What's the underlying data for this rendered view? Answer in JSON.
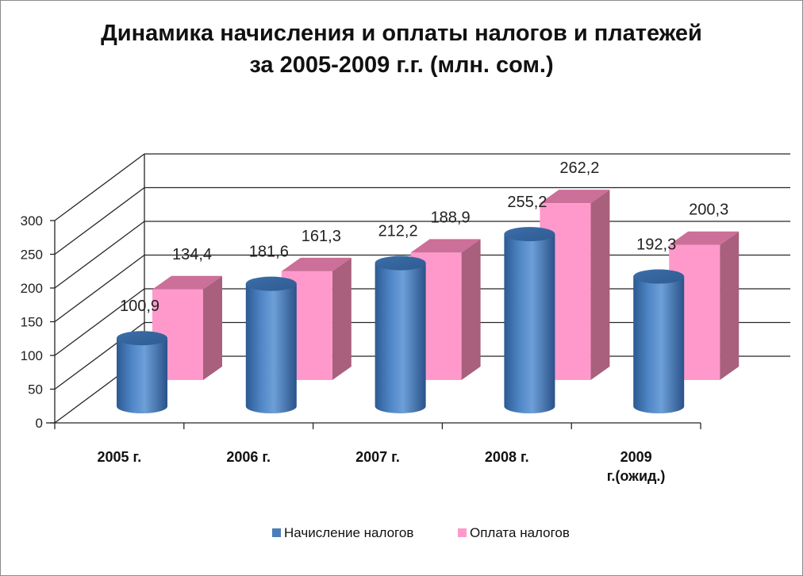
{
  "chart_data": {
    "type": "bar",
    "title_line1": "Динамика начисления  и оплаты налогов и платежей",
    "title_line2": "за 2005-2009 г.г. (млн. сом.)",
    "categories": [
      [
        "2005 г."
      ],
      [
        "2006 г."
      ],
      [
        "2007 г."
      ],
      [
        "2008 г."
      ],
      [
        "2009",
        "г.(ожид.)"
      ]
    ],
    "series": [
      {
        "name": "Начисление налогов",
        "values": [
          100.9,
          181.6,
          212.2,
          255.2,
          192.3
        ],
        "labels": [
          "100,9",
          "181,6",
          "212,2",
          "255,2",
          "192,3"
        ],
        "color": "#4a7ebb"
      },
      {
        "name": "Оплата налогов",
        "values": [
          134.4,
          161.3,
          188.9,
          262.2,
          200.3
        ],
        "labels": [
          "134,4",
          "161,3",
          "188,9",
          "262,2",
          "200,3"
        ],
        "color": "#ff99cc"
      }
    ],
    "y_ticks": [
      "0",
      "50",
      "100",
      "150",
      "200",
      "250",
      "300"
    ],
    "ylim": [
      0,
      300
    ],
    "grid": true,
    "legend_position": "bottom",
    "three_d": true
  }
}
